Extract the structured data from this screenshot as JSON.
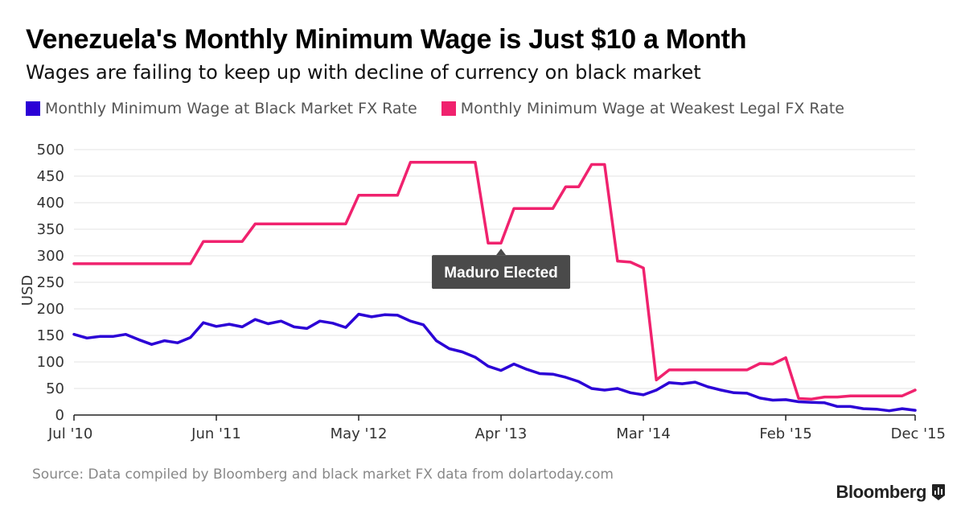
{
  "header": {
    "title": "Venezuela's Monthly Minimum Wage is Just $10 a Month",
    "subtitle": "Wages are failing to keep up with decline of currency on black market"
  },
  "legend": {
    "items": [
      {
        "label": "Monthly Minimum Wage at Black Market FX Rate",
        "color": "#2b00d6"
      },
      {
        "label": "Monthly Minimum Wage at Weakest Legal FX Rate",
        "color": "#f0226e"
      }
    ]
  },
  "footer": {
    "source": "Source: Data compiled by Bloomberg and black market FX data from dolartoday.com",
    "brand": "Bloomberg"
  },
  "chart_data": {
    "type": "line",
    "title": "Venezuela's Monthly Minimum Wage is Just $10 a Month",
    "xlabel": "",
    "ylabel": "USD",
    "ylim": [
      0,
      500
    ],
    "yticks": [
      0,
      50,
      100,
      150,
      200,
      250,
      300,
      350,
      400,
      450,
      500
    ],
    "xlim": [
      0,
      65
    ],
    "x_ticks": [
      {
        "x": 0,
        "label": "Jul '10"
      },
      {
        "x": 11,
        "label": "Jun '11"
      },
      {
        "x": 22,
        "label": "May '12"
      },
      {
        "x": 33,
        "label": "Apr '13"
      },
      {
        "x": 44,
        "label": "Mar '14"
      },
      {
        "x": 55,
        "label": "Feb '15"
      },
      {
        "x": 65,
        "label": "Dec '15"
      }
    ],
    "grid": true,
    "series": [
      {
        "name": "Monthly Minimum Wage at Black Market FX Rate",
        "color": "#2b00d6",
        "points": [
          [
            0,
            152
          ],
          [
            1,
            145
          ],
          [
            2,
            148
          ],
          [
            3,
            148
          ],
          [
            4,
            152
          ],
          [
            5,
            142
          ],
          [
            6,
            133
          ],
          [
            7,
            140
          ],
          [
            8,
            136
          ],
          [
            9,
            146
          ],
          [
            10,
            174
          ],
          [
            11,
            167
          ],
          [
            12,
            171
          ],
          [
            13,
            166
          ],
          [
            14,
            180
          ],
          [
            15,
            172
          ],
          [
            16,
            177
          ],
          [
            17,
            166
          ],
          [
            18,
            163
          ],
          [
            19,
            177
          ],
          [
            20,
            173
          ],
          [
            21,
            165
          ],
          [
            22,
            190
          ],
          [
            23,
            185
          ],
          [
            24,
            189
          ],
          [
            25,
            188
          ],
          [
            26,
            177
          ],
          [
            27,
            170
          ],
          [
            28,
            140
          ],
          [
            29,
            125
          ],
          [
            30,
            119
          ],
          [
            31,
            109
          ],
          [
            32,
            92
          ],
          [
            33,
            84
          ],
          [
            34,
            96
          ],
          [
            35,
            86
          ],
          [
            36,
            78
          ],
          [
            37,
            77
          ],
          [
            38,
            71
          ],
          [
            39,
            63
          ],
          [
            40,
            50
          ],
          [
            41,
            47
          ],
          [
            42,
            50
          ],
          [
            43,
            42
          ],
          [
            44,
            38
          ],
          [
            45,
            47
          ],
          [
            46,
            61
          ],
          [
            47,
            59
          ],
          [
            48,
            62
          ],
          [
            49,
            53
          ],
          [
            50,
            47
          ],
          [
            51,
            42
          ],
          [
            52,
            41
          ],
          [
            53,
            32
          ],
          [
            54,
            28
          ],
          [
            55,
            29
          ],
          [
            56,
            25
          ],
          [
            57,
            24
          ],
          [
            58,
            23
          ],
          [
            59,
            16
          ],
          [
            60,
            16
          ],
          [
            61,
            12
          ],
          [
            62,
            11
          ],
          [
            63,
            8
          ],
          [
            64,
            12
          ],
          [
            65,
            9
          ]
        ]
      },
      {
        "name": "Monthly Minimum Wage at Weakest Legal FX Rate",
        "color": "#f0226e",
        "points": [
          [
            0,
            285
          ],
          [
            9,
            285
          ],
          [
            10,
            327
          ],
          [
            13,
            327
          ],
          [
            14,
            360
          ],
          [
            21,
            360
          ],
          [
            22,
            414
          ],
          [
            25,
            414
          ],
          [
            26,
            476
          ],
          [
            31,
            476
          ],
          [
            32,
            324
          ],
          [
            33,
            324
          ],
          [
            34,
            389
          ],
          [
            37,
            389
          ],
          [
            38,
            430
          ],
          [
            39,
            430
          ],
          [
            40,
            472
          ],
          [
            41,
            472
          ],
          [
            42,
            290
          ],
          [
            43,
            288
          ],
          [
            44,
            277
          ],
          [
            45,
            66
          ],
          [
            46,
            85
          ],
          [
            52,
            85
          ],
          [
            53,
            97
          ],
          [
            54,
            96
          ],
          [
            55,
            108
          ],
          [
            56,
            31
          ],
          [
            57,
            30
          ],
          [
            58,
            34
          ],
          [
            59,
            34
          ],
          [
            60,
            36
          ],
          [
            64,
            36
          ],
          [
            65,
            47
          ]
        ]
      }
    ],
    "annotations": [
      {
        "text": "Maduro Elected",
        "x": 33,
        "y": 324
      }
    ]
  }
}
